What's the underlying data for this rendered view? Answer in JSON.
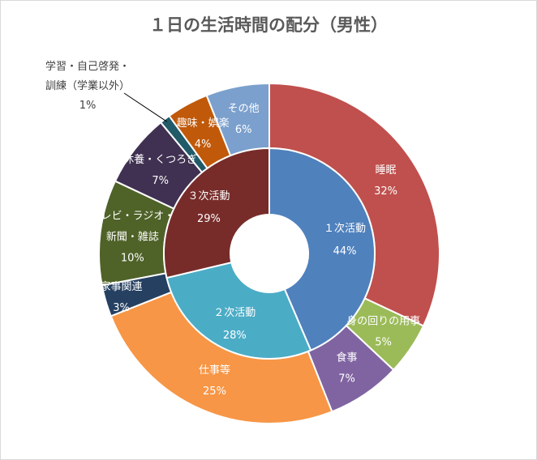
{
  "chart_data": {
    "type": "donut",
    "title": "１日の生活時間の配分（男性）",
    "inner": [
      {
        "name": "１次活動",
        "value": 44,
        "label": "44%",
        "color": "#4f81bd"
      },
      {
        "name": "２次活動",
        "value": 28,
        "label": "28%",
        "color": "#4bacc6"
      },
      {
        "name": "３次活動",
        "value": 29,
        "label": "29%",
        "color": "#772c2a"
      }
    ],
    "outer": [
      {
        "name": "睡眠",
        "value": 32,
        "label": "32%",
        "color": "#c0504d"
      },
      {
        "name": "身の回りの用事",
        "value": 5,
        "label": "5%",
        "color": "#9bbb59"
      },
      {
        "name": "食事",
        "value": 7,
        "label": "7%",
        "color": "#8064a2"
      },
      {
        "name": "仕事等",
        "value": 25,
        "label": "25%",
        "color": "#f79646"
      },
      {
        "name": "家事関連",
        "value": 3,
        "label": "3%",
        "color": "#254061"
      },
      {
        "name": "テレビ・ラジオ・新聞・雑誌",
        "value": 10,
        "label": "10%",
        "color": "#4f6228"
      },
      {
        "name": "休養・くつろぎ",
        "value": 7,
        "label": "7%",
        "color": "#403152"
      },
      {
        "name": "学習・自己啓発・訓練（学業以外）",
        "value": 1,
        "label": "1%",
        "color": "#215a69"
      },
      {
        "name": "趣味・娯楽",
        "value": 4,
        "label": "4%",
        "color": "#c0590a"
      },
      {
        "name": "その他",
        "value": 6,
        "label": "6%",
        "color": "#7ba0cd"
      }
    ]
  }
}
